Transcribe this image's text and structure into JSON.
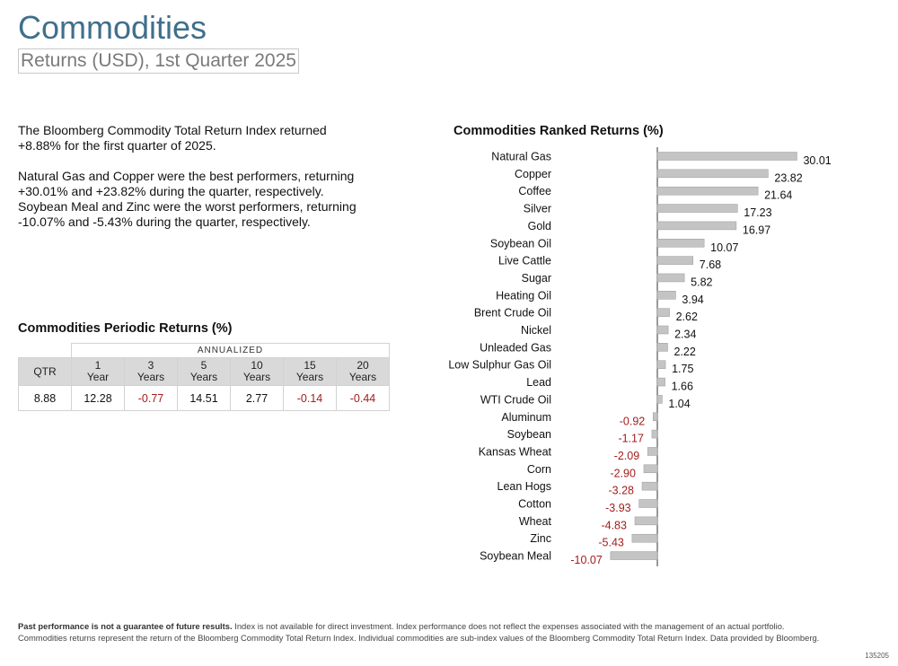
{
  "header": {
    "title": "Commodities",
    "subtitle": "Returns (USD), 1st Quarter 2025"
  },
  "summary": {
    "p1": "The Bloomberg Commodity Total Return Index returned +8.88% for the first quarter of 2025.",
    "p2": "Natural Gas and Copper were the best performers, returning +30.01% and +23.82% during the quarter, respectively. Soybean Meal and Zinc were the worst performers, returning -10.07% and -5.43% during the quarter, respectively."
  },
  "periodic": {
    "title": "Commodities Periodic Returns (%)",
    "annualized_label": "ANNUALIZED",
    "qtr_label": "QTR",
    "headers": [
      {
        "num": "1",
        "unit": "Year"
      },
      {
        "num": "3",
        "unit": "Years"
      },
      {
        "num": "5",
        "unit": "Years"
      },
      {
        "num": "10",
        "unit": "Years"
      },
      {
        "num": "15",
        "unit": "Years"
      },
      {
        "num": "20",
        "unit": "Years"
      }
    ],
    "qtr_value": "8.88",
    "values": [
      "12.28",
      "-0.77",
      "14.51",
      "2.77",
      "-0.14",
      "-0.44"
    ],
    "negative_color": "#a31d1d"
  },
  "chart_data": {
    "type": "bar",
    "orientation": "horizontal",
    "title": "Commodities Ranked Returns (%)",
    "categories": [
      "Natural Gas",
      "Copper",
      "Coffee",
      "Silver",
      "Gold",
      "Soybean Oil",
      "Live Cattle",
      "Sugar",
      "Heating Oil",
      "Brent Crude Oil",
      "Nickel",
      "Unleaded Gas",
      "Low Sulphur Gas Oil",
      "Lead",
      "WTI Crude Oil",
      "Aluminum",
      "Soybean",
      "Kansas Wheat",
      "Corn",
      "Lean Hogs",
      "Cotton",
      "Wheat",
      "Zinc",
      "Soybean Meal"
    ],
    "values": [
      30.01,
      23.82,
      21.64,
      17.23,
      16.97,
      10.07,
      7.68,
      5.82,
      3.94,
      2.62,
      2.34,
      2.22,
      1.75,
      1.66,
      1.04,
      -0.92,
      -1.17,
      -2.09,
      -2.9,
      -3.28,
      -3.93,
      -4.83,
      -5.43,
      -10.07
    ],
    "bar_color": "#c4c4c4",
    "negative_label_color": "#a31d1d",
    "xlim": [
      -10.07,
      30.01
    ]
  },
  "footnote": {
    "bold": "Past performance is not a guarantee of future results.",
    "line1": " Index is not available for direct investment. Index performance does not reflect the expenses associated with the management of an actual portfolio.",
    "line2": "Commodities returns represent the return of the Bloomberg Commodity Total Return Index. Individual commodities are sub-index values of the Bloomberg Commodity Total Return Index. Data provided by Bloomberg."
  },
  "doc_code": "135205"
}
